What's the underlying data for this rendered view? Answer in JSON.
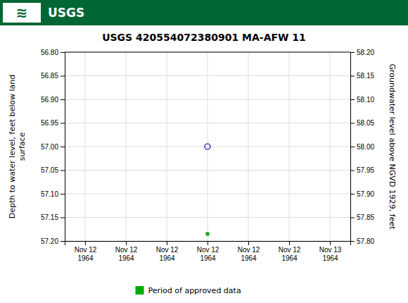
{
  "chart_data": {
    "type": "scatter",
    "title": "USGS 420554072380901 MA-AFW  11",
    "annotations": [
      "≋",
      "USGS"
    ],
    "ylabel": "Depth to water level, feet below land\nsurface",
    "y2label": "Groundwater level above NGVD 1929, feet",
    "categories": [
      "Nov 12\n1964",
      "Nov 12\n1964",
      "Nov 12\n1964",
      "Nov 12\n1964",
      "Nov 12\n1964",
      "Nov 12\n1964",
      "Nov 13\n1964"
    ],
    "series": [
      {
        "color": "#0000cc",
        "marker": "circle",
        "values": [
          null,
          null,
          null,
          57.0,
          null,
          null,
          null
        ]
      },
      {
        "name": "Period of approved data",
        "color": "#00aa00",
        "marker": "square",
        "values": [
          null,
          null,
          null,
          57.185,
          null,
          null,
          null
        ]
      }
    ],
    "ylim": [
      57.2,
      56.8
    ],
    "yticks": [
      {
        "value": 56.8,
        "label": "56.80"
      },
      {
        "value": 56.85,
        "label": "56.85"
      },
      {
        "value": 56.9,
        "label": "56.90"
      },
      {
        "value": 56.95,
        "label": "56.95"
      },
      {
        "value": 57.0,
        "label": "57.00"
      },
      {
        "value": 57.05,
        "label": "57.05"
      },
      {
        "value": 57.1,
        "label": "57.10"
      },
      {
        "value": 57.15,
        "label": "57.15"
      },
      {
        "value": 57.2,
        "label": "57.20"
      }
    ],
    "y2lim": [
      57.8,
      58.2
    ],
    "y2ticks": [
      {
        "value": 58.2,
        "label": "58.20"
      },
      {
        "value": 58.15,
        "label": "58.15"
      },
      {
        "value": 58.1,
        "label": "58.10"
      },
      {
        "value": 58.05,
        "label": "58.05"
      },
      {
        "value": 58.0,
        "label": "58.00"
      },
      {
        "value": 57.95,
        "label": "57.95"
      },
      {
        "value": 57.9,
        "label": "57.90"
      },
      {
        "value": 57.85,
        "label": "57.85"
      },
      {
        "value": 57.8,
        "label": "57.80"
      }
    ],
    "grid": true,
    "legend": "bottom"
  }
}
